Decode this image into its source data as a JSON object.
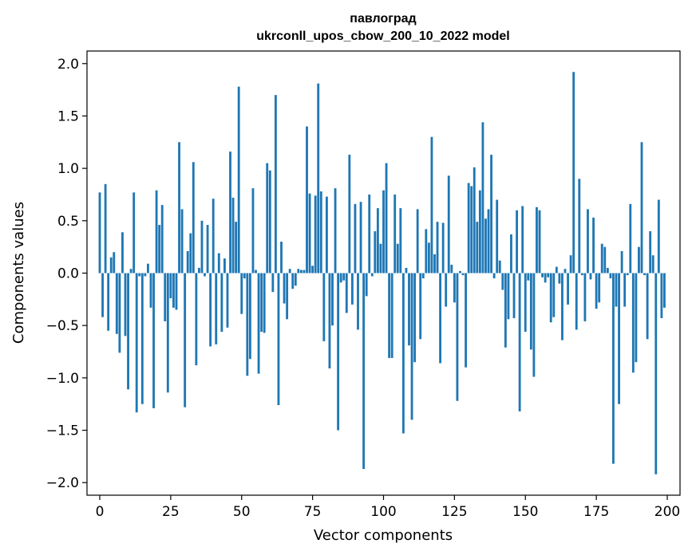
{
  "chart_data": {
    "type": "bar",
    "title": "павлоград",
    "subtitle": "ukrconll_upos_cbow_200_10_2022 model",
    "xlabel": "Vector components",
    "ylabel": "Components values",
    "xlim": [
      -4.5,
      204.5
    ],
    "ylim": [
      -2.12,
      2.12
    ],
    "xticks": [
      0,
      25,
      50,
      75,
      100,
      125,
      150,
      175,
      200
    ],
    "xtick_labels": [
      "0",
      "25",
      "50",
      "75",
      "100",
      "125",
      "150",
      "175",
      "200"
    ],
    "yticks": [
      2.0,
      1.5,
      1.0,
      0.5,
      0.0,
      -0.5,
      -1.0,
      -1.5,
      -2.0
    ],
    "ytick_labels": [
      "2.0",
      "1.5",
      "1.0",
      "0.5",
      "0.0",
      "−0.5",
      "−1.0",
      "−1.5",
      "−2.0"
    ],
    "bar_color": "#1f77b4",
    "grid": false,
    "values": [
      0.77,
      -0.42,
      0.85,
      -0.55,
      0.15,
      0.2,
      -0.58,
      -0.76,
      0.39,
      -0.6,
      -1.11,
      0.04,
      0.77,
      -1.33,
      -0.03,
      -1.25,
      -0.03,
      0.09,
      -0.33,
      -1.29,
      0.79,
      0.46,
      0.65,
      -0.46,
      -1.14,
      -0.24,
      -0.33,
      -0.35,
      1.25,
      0.61,
      -1.28,
      0.21,
      0.38,
      1.06,
      -0.88,
      0.05,
      0.5,
      -0.03,
      0.46,
      -0.7,
      0.71,
      -0.68,
      0.19,
      -0.56,
      0.14,
      -0.52,
      1.16,
      0.72,
      0.49,
      1.78,
      -0.39,
      -0.05,
      -0.98,
      -0.82,
      0.81,
      0.03,
      -0.96,
      -0.56,
      -0.57,
      1.05,
      0.98,
      -0.18,
      1.7,
      -1.26,
      0.3,
      -0.29,
      -0.44,
      0.04,
      -0.15,
      -0.12,
      0.04,
      0.03,
      0.03,
      1.4,
      0.76,
      0.07,
      0.74,
      1.81,
      0.78,
      -0.65,
      0.73,
      -0.91,
      -0.5,
      0.81,
      -1.5,
      -0.09,
      -0.07,
      -0.38,
      1.13,
      -0.3,
      0.66,
      -0.54,
      0.68,
      -1.87,
      -0.22,
      0.75,
      -0.03,
      0.4,
      0.62,
      0.28,
      0.79,
      1.05,
      -0.81,
      -0.81,
      0.75,
      0.28,
      0.62,
      -1.53,
      0.05,
      -0.69,
      -1.4,
      -0.85,
      0.61,
      -0.63,
      -0.05,
      0.42,
      0.29,
      1.3,
      0.18,
      0.49,
      -0.86,
      0.48,
      -0.32,
      0.93,
      0.08,
      -0.28,
      -1.22,
      0.02,
      -0.02,
      -0.9,
      0.86,
      0.83,
      1.01,
      0.49,
      0.79,
      1.44,
      0.52,
      0.61,
      1.13,
      -0.05,
      0.7,
      0.12,
      -0.16,
      -0.71,
      -0.44,
      0.37,
      -0.43,
      0.6,
      -1.32,
      0.64,
      -0.56,
      -0.07,
      -0.73,
      -0.99,
      0.63,
      0.6,
      -0.04,
      -0.09,
      -0.04,
      -0.47,
      -0.42,
      0.06,
      -0.1,
      -0.64,
      0.04,
      -0.3,
      0.17,
      1.92,
      -0.54,
      0.9,
      -0.02,
      -0.46,
      0.61,
      -0.06,
      0.53,
      -0.34,
      -0.28,
      0.28,
      0.25,
      0.05,
      -0.05,
      -1.82,
      -0.32,
      -1.25,
      0.21,
      -0.32,
      -0.02,
      0.66,
      -0.95,
      -0.85,
      0.25,
      1.25,
      -0.02,
      -0.63,
      0.4,
      0.17,
      -1.92,
      0.7,
      -0.43,
      -0.33
    ]
  }
}
